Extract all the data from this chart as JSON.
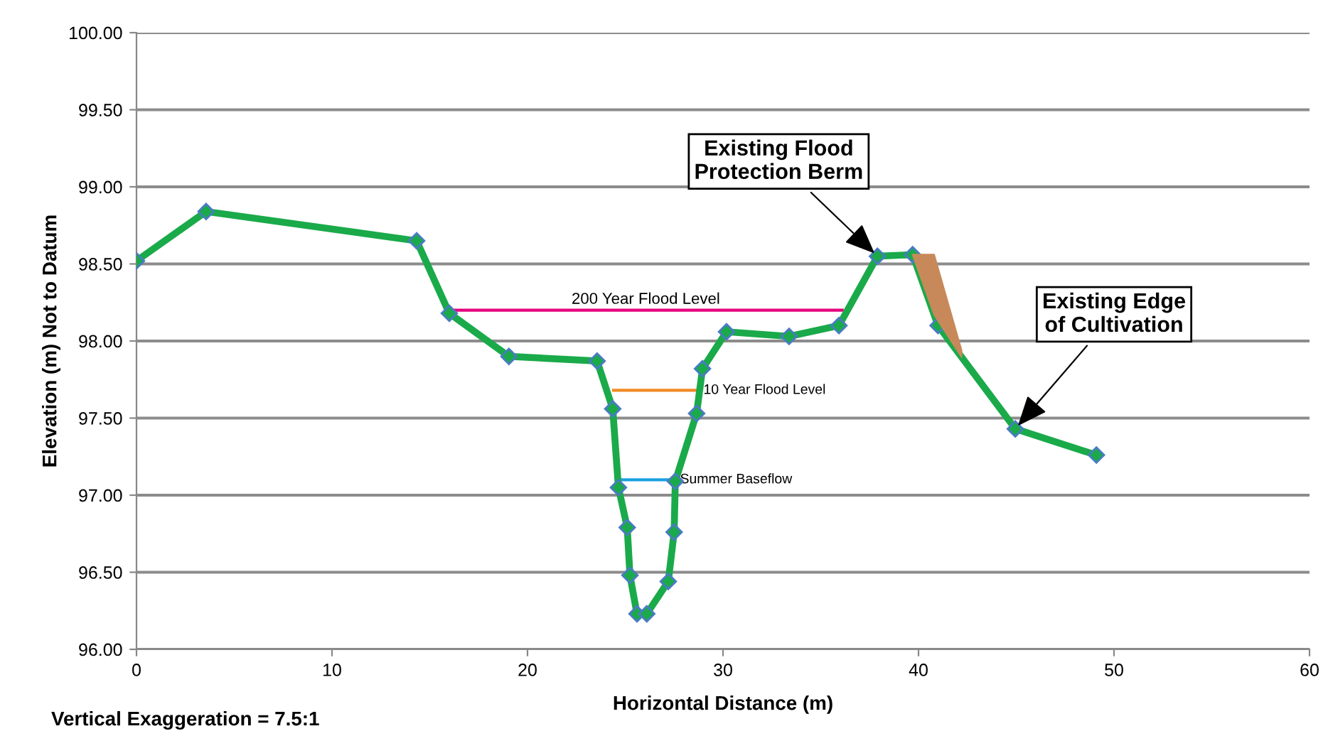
{
  "chart_data": {
    "type": "line",
    "xlabel": "Horizontal Distance (m)",
    "ylabel": "Elevation (m) Not to Datum",
    "xlim": [
      0,
      60
    ],
    "xticks": [
      0,
      10,
      20,
      30,
      40,
      50,
      60
    ],
    "ylim": [
      96,
      100
    ],
    "yticks": [
      {
        "value": 96,
        "label": "96.00"
      },
      {
        "value": 96.5,
        "label": "96.50"
      },
      {
        "value": 97,
        "label": "97.00"
      },
      {
        "value": 97.5,
        "label": "97.50"
      },
      {
        "value": 98,
        "label": "98.00"
      },
      {
        "value": 98.5,
        "label": "98.50"
      },
      {
        "value": 99,
        "label": "99.00"
      },
      {
        "value": 99.5,
        "label": "99.50"
      },
      {
        "value": 100,
        "label": "100.00"
      }
    ],
    "grid": "y",
    "legend": false,
    "series": [
      {
        "type": "area",
        "color": "#c8895a",
        "x": [
          39.7,
          40.8,
          42.2
        ],
        "values": [
          98.56,
          98.56,
          97.94
        ]
      },
      {
        "name": "200 Year Flood Level",
        "color": "#e6007e",
        "x": [
          16.0,
          36.1
        ],
        "values": [
          98.2,
          98.2
        ],
        "marker": "none"
      },
      {
        "name": "10 Year Flood Level",
        "color": "#f08a24",
        "x": [
          24.4,
          28.7
        ],
        "values": [
          97.68,
          97.68
        ],
        "marker": "none"
      },
      {
        "name": "Summer Baseflow",
        "color": "#1ba1e2",
        "x": [
          24.65,
          27.5
        ],
        "values": [
          97.1,
          97.1
        ],
        "marker": "none"
      },
      {
        "color": "#1aaa4a",
        "marker": "diamond",
        "x": [
          0,
          3.56,
          14.33,
          16.0,
          19.05,
          23.56,
          24.36,
          24.65,
          25.1,
          25.24,
          25.6,
          26.1,
          27.2,
          27.5,
          27.56,
          28.65,
          28.95,
          30.18,
          33.38,
          35.93,
          37.9,
          39.7,
          41.0,
          44.95,
          49.1
        ],
        "values": [
          98.52,
          98.84,
          98.65,
          98.18,
          97.9,
          97.87,
          97.56,
          97.05,
          96.79,
          96.48,
          96.23,
          96.23,
          96.44,
          96.76,
          97.09,
          97.53,
          97.82,
          98.06,
          98.03,
          98.1,
          98.55,
          98.56,
          98.1,
          97.43,
          97.26
        ]
      }
    ],
    "annotations": [
      {
        "text": "Existing Flood\nProtection Berm",
        "x": 37.9,
        "y": 98.55
      },
      {
        "text": "Existing Edge\nof Cultivation",
        "x": 44.95,
        "y": 97.43
      },
      "Vertical Exaggeration = 7.5:1"
    ]
  }
}
